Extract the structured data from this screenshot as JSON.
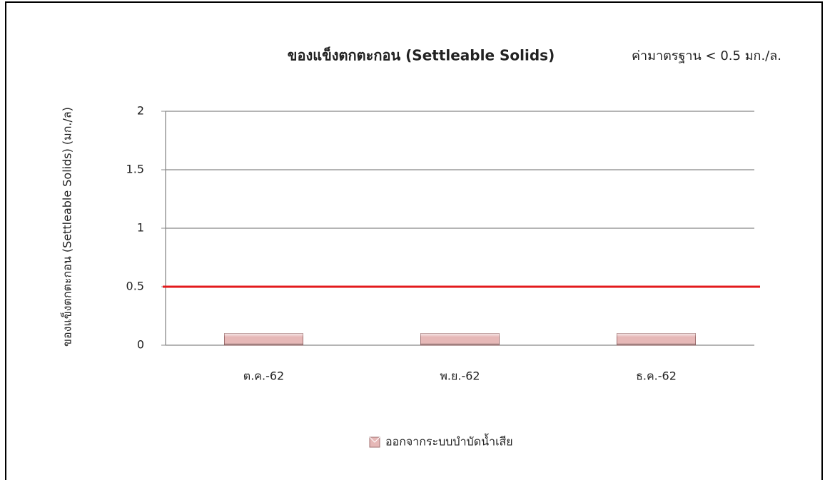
{
  "chart_data": {
    "type": "bar",
    "title": "ของแข็งตกตะกอน (Settleable Solids)",
    "annotation": "ค่ามาตรฐาน  < 0.5 มก./ล.",
    "y_label": "ของแข็งตกตะกอน (Settleable Solids)   (มก./ล)",
    "categories": [
      "ต.ค.-62",
      "พ.ย.-62",
      "ธ.ค.-62"
    ],
    "series": [
      {
        "name": "ออกจากระบบบำบัดน้ำเสีย",
        "color": "#e6b8b7",
        "values": [
          0.1,
          0.1,
          0.1
        ]
      }
    ],
    "threshold": {
      "value": 0.5,
      "color": "#e31a1c"
    },
    "ylim": [
      0,
      2
    ],
    "yticks": [
      0,
      0.5,
      1,
      1.5,
      2
    ],
    "grid": true,
    "legend": "bottom"
  }
}
